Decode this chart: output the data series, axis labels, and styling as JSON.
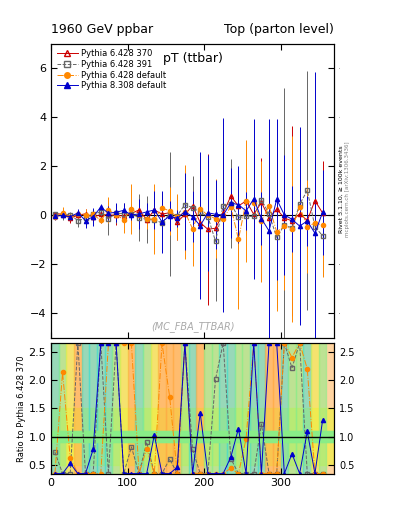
{
  "title_left": "1960 GeV ppbar",
  "title_right": "Top (parton level)",
  "main_title": "pT (ttbar)",
  "ylabel_ratio": "Ratio to Pythia 6.428 370",
  "right_label_top": "Rivet 3.1.10, ≥ 100k events",
  "right_label_bottom": "mcplots.cern.ch [arXiv:1306.3436]",
  "watermark": "(MC_FBA_TTBAR)",
  "ylim_main": [
    -5,
    7
  ],
  "ylim_ratio": [
    0.35,
    2.65
  ],
  "xlim": [
    0,
    370
  ],
  "yticks_main": [
    -4,
    -2,
    0,
    2,
    4,
    6
  ],
  "yticks_ratio": [
    0.5,
    1.0,
    1.5,
    2.0,
    2.5
  ],
  "xticks": [
    0,
    100,
    200,
    300
  ],
  "legend_entries": [
    {
      "label": "Pythia 6.428 370",
      "color": "#cc0000",
      "marker": "^",
      "mfc": "none",
      "linestyle": "-"
    },
    {
      "label": "Pythia 6.428 391",
      "color": "#666666",
      "marker": "s",
      "mfc": "none",
      "linestyle": "--"
    },
    {
      "label": "Pythia 6.428 default",
      "color": "#ff8800",
      "marker": "o",
      "mfc": "#ff8800",
      "linestyle": "-."
    },
    {
      "label": "Pythia 8.308 default",
      "color": "#0000cc",
      "marker": "^",
      "mfc": "#0000cc",
      "linestyle": "-"
    }
  ],
  "colors": [
    "#cc0000",
    "#666666",
    "#ff8800",
    "#0000cc"
  ],
  "bg_green": "#88ee88",
  "bg_yellow": "#eeee44",
  "bg_orange": "#ffaa44",
  "bg_cyan": "#44ddcc"
}
